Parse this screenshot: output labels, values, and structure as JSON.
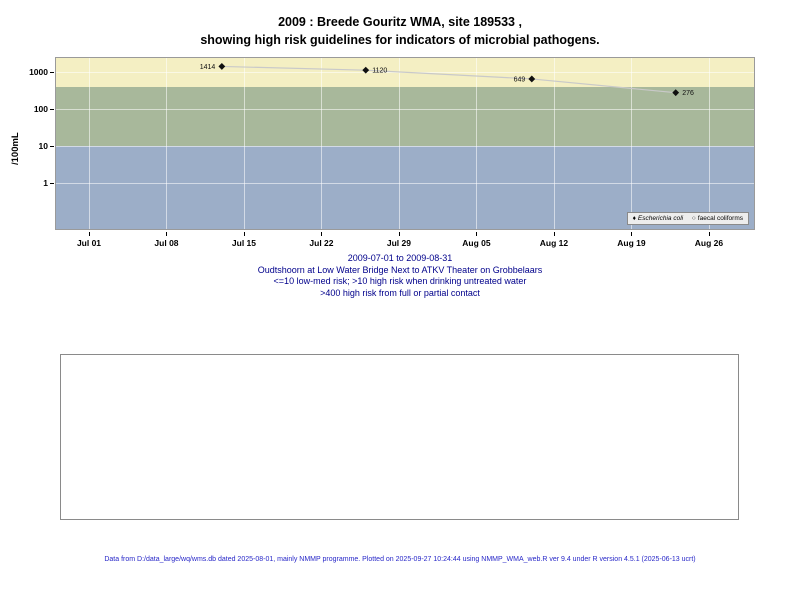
{
  "title": {
    "line1": "2009 : Breede Gouritz WMA, site 189533 ,",
    "line2": "showing high risk guidelines for indicators of microbial pathogens."
  },
  "chart_data": {
    "type": "scatter",
    "title": "2009 : Breede Gouritz WMA, site 189533 , showing high risk guidelines for indicators of microbial pathogens.",
    "ylabel": "/100mL",
    "y_scale": "log10",
    "ylim": [
      0.05,
      2400
    ],
    "x_range": [
      "2009-07-01",
      "2009-08-31"
    ],
    "xticks": [
      {
        "label": "Jul 01",
        "day": 0
      },
      {
        "label": "Jul 08",
        "day": 7
      },
      {
        "label": "Jul 15",
        "day": 14
      },
      {
        "label": "Jul 22",
        "day": 21
      },
      {
        "label": "Jul 29",
        "day": 28
      },
      {
        "label": "Aug 05",
        "day": 35
      },
      {
        "label": "Aug 12",
        "day": 42
      },
      {
        "label": "Aug 19",
        "day": 49
      },
      {
        "label": "Aug 26",
        "day": 56
      }
    ],
    "yticks": [
      1000,
      100,
      10,
      1
    ],
    "bands": [
      {
        "name": "full-contact-high-risk",
        "from": 400,
        "to": 2400,
        "color": "#F4EFC3"
      },
      {
        "name": "drinking-high-risk",
        "from": 10,
        "to": 400,
        "color": "#A8B89B"
      },
      {
        "name": "low-med-risk",
        "from": 0.05,
        "to": 10,
        "color": "#9CAEC8"
      }
    ],
    "series": [
      {
        "name": "Escherichia coli",
        "marker": "filled-diamond",
        "points": [
          {
            "date": "2009-07-13",
            "value": 1414
          },
          {
            "date": "2009-07-26",
            "value": 1120
          },
          {
            "date": "2009-08-10",
            "value": 649
          },
          {
            "date": "2009-08-23",
            "value": 276
          }
        ]
      },
      {
        "name": "faecal coliforms",
        "marker": "open-circle",
        "points": []
      }
    ],
    "legend": [
      {
        "label": "Escherichia coli",
        "marker": "filled-diamond",
        "glyph": "♦"
      },
      {
        "label": "faecal coliforms",
        "marker": "open-circle",
        "glyph": "○"
      }
    ],
    "legend_position": "bottom-right"
  },
  "captions": {
    "range": "2009-07-01 to 2009-08-31",
    "site": "Oudtshoorn at Low Water Bridge Next to ATKV Theater on Grobbelaars",
    "guide1": "<=10 low-med risk; >10 high risk when drinking untreated water",
    "guide2": ">400 high risk from full or partial contact"
  },
  "footer": {
    "text": "Data from D:/data_large/wq/wms.db dated 2025-08-01, mainly NMMP programme. Plotted on 2025-09-27 10:24:44 using NMMP_WMA_web.R ver 9.4 under R version 4.5.1 (2025-06-13 ucrt)"
  }
}
